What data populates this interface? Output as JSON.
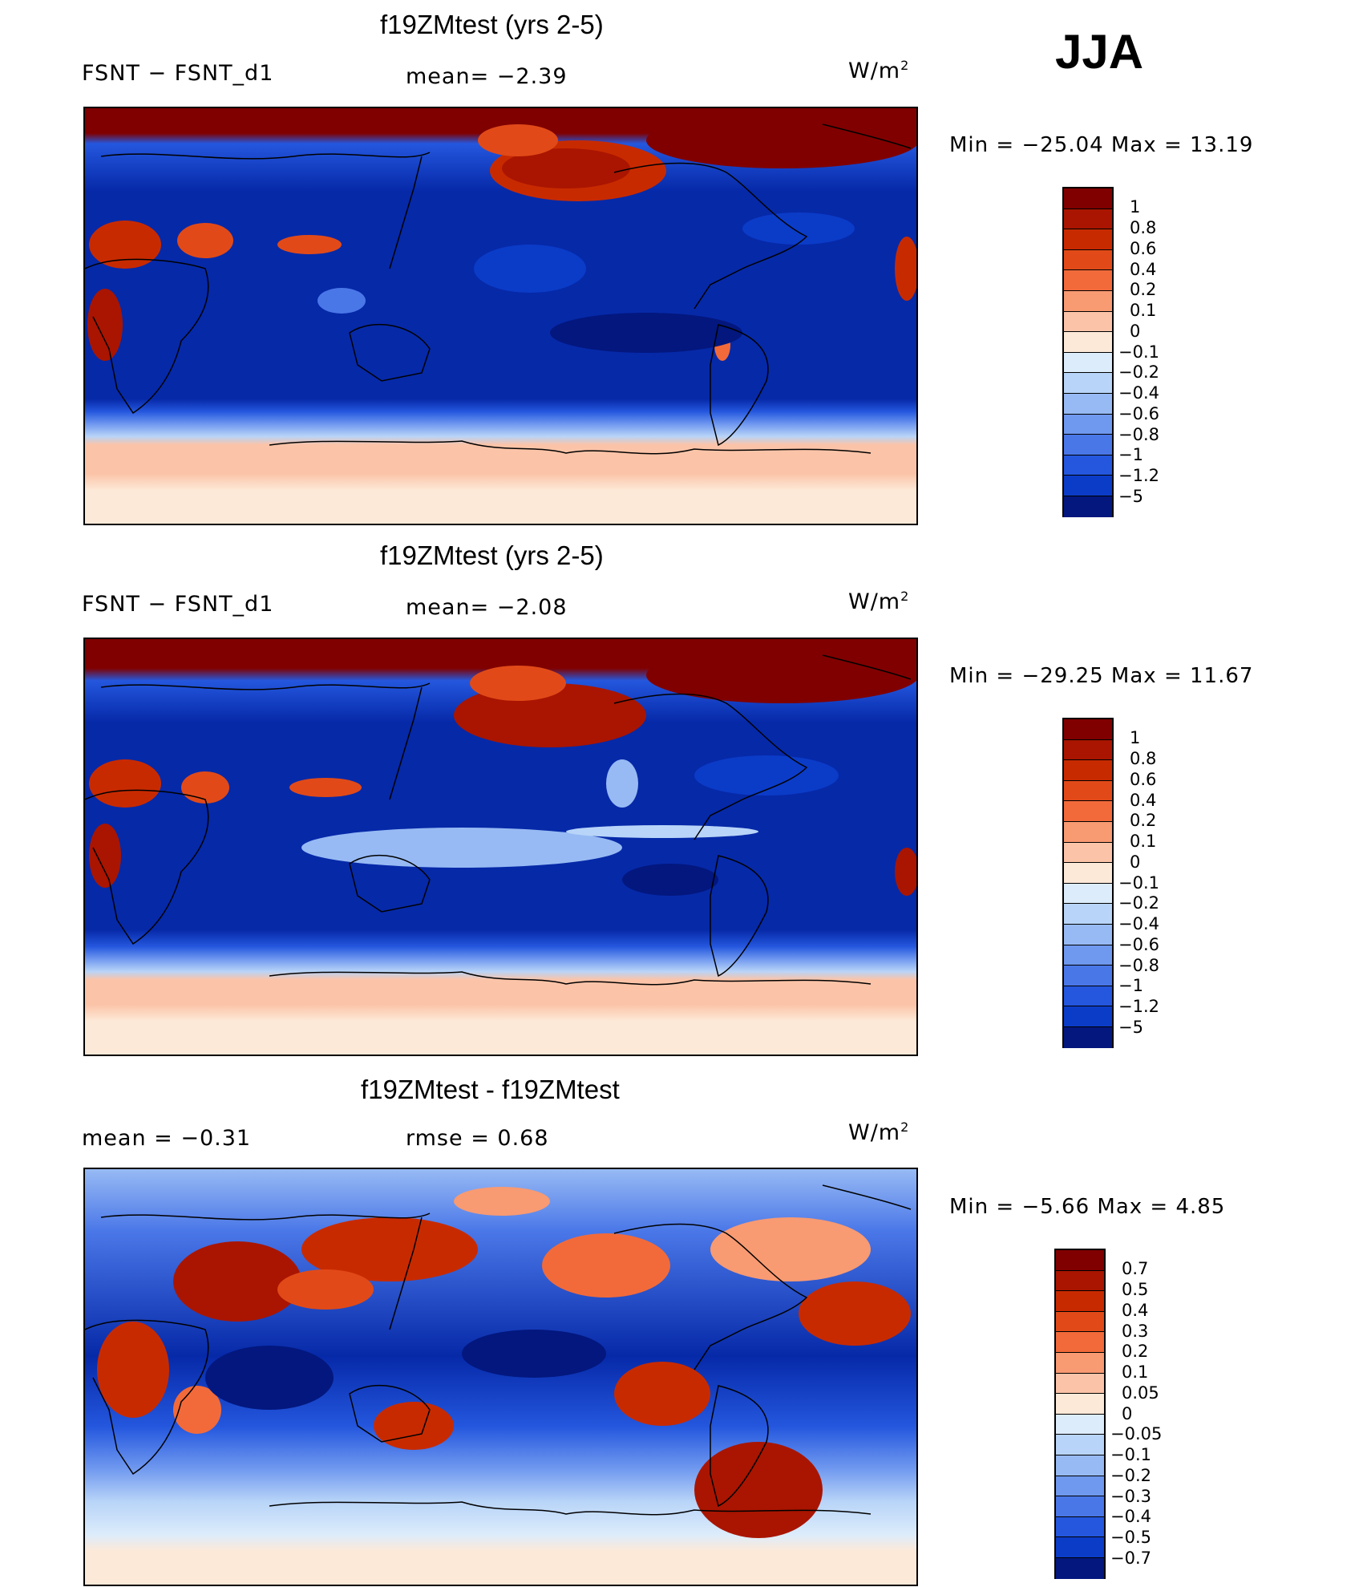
{
  "season": "JJA",
  "colors": {
    "panel_scale": [
      "#800000",
      "#a91500",
      "#c82a00",
      "#e14a18",
      "#f26a3a",
      "#f89a72",
      "#fbc4a8",
      "#fde9d8",
      "#dcecfb",
      "#b8d4f8",
      "#97baf4",
      "#6f98ef",
      "#4a77e8",
      "#2457de",
      "#0b3cc8",
      "#0629a8",
      "#03177e"
    ],
    "diff_scale": [
      "#800000",
      "#a91500",
      "#c82a00",
      "#e14a18",
      "#f26a3a",
      "#f89a72",
      "#fbc4a8",
      "#fde9d8",
      "#dcecfb",
      "#b8d4f8",
      "#97baf4",
      "#6f98ef",
      "#4a77e8",
      "#2457de",
      "#0b3cc8",
      "#0629a8",
      "#03177e"
    ]
  },
  "panels": [
    {
      "title": "f19ZMtest (yrs 2-5)",
      "left_header": "FSNT − FSNT_d1",
      "mid_header": "mean=   −2.39",
      "units": "W/m",
      "units_sup": "2",
      "minmax": "Min  =  −25.04  Max  =    13.19",
      "colorbar_labels": [
        "1",
        "0.8",
        "0.6",
        "0.4",
        "0.2",
        "0.1",
        "0",
        "−0.1",
        "−0.2",
        "−0.4",
        "−0.6",
        "−0.8",
        "−1",
        "−1.2",
        "−5"
      ]
    },
    {
      "title": "f19ZMtest (yrs 2-5)",
      "left_header": "FSNT − FSNT_d1",
      "mid_header": "mean=   −2.08",
      "units": "W/m",
      "units_sup": "2",
      "minmax": "Min  =  −29.25  Max  =    11.67",
      "colorbar_labels": [
        "1",
        "0.8",
        "0.6",
        "0.4",
        "0.2",
        "0.1",
        "0",
        "−0.1",
        "−0.2",
        "−0.4",
        "−0.6",
        "−0.8",
        "−1",
        "−1.2",
        "−5"
      ]
    },
    {
      "title": "f19ZMtest - f19ZMtest",
      "left_header": "mean  =    −0.31",
      "mid_header": "rmse  =     0.68",
      "units": "W/m",
      "units_sup": "2",
      "minmax": "Min  =    −5.66  Max  =     4.85",
      "colorbar_labels": [
        "0.7",
        "0.5",
        "0.4",
        "0.3",
        "0.2",
        "0.1",
        "0.05",
        "0",
        "−0.05",
        "−0.1",
        "−0.2",
        "−0.3",
        "−0.4",
        "−0.5",
        "−0.7"
      ]
    }
  ]
}
